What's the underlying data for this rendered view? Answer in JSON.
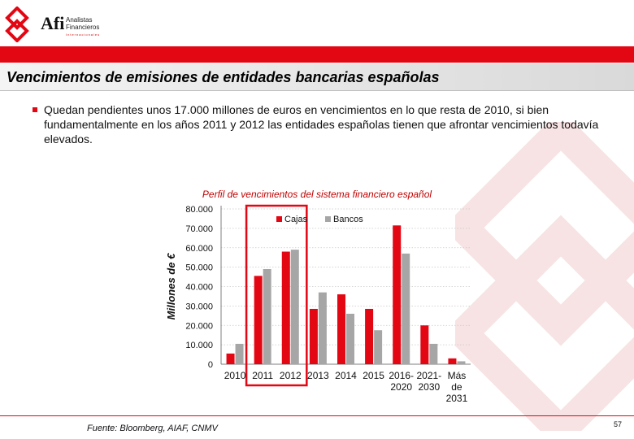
{
  "header": {
    "logo_word": "Afi",
    "logo_sub_line1": "Analistas",
    "logo_sub_line2": "Financieros",
    "logo_sub_line3": "Internacionales"
  },
  "title": "Vencimientos de emisiones  de entidades bancarias españolas",
  "bullet_text": "Quedan pendientes unos 17.000 millones de euros en vencimientos en lo que resta de 2010, si bien fundamentalmente en los años 2011 y 2012 las entidades españolas tienen que afrontar vencimientos todavía elevados.",
  "footer": {
    "source": "Fuente: Bloomberg, AIAF, CNMV",
    "page_number": "57"
  },
  "colors": {
    "cajas": "#e30613",
    "bancos": "#a6a6a6",
    "accent": "#e30613",
    "highlight": "#e30613"
  },
  "chart_data": {
    "type": "bar",
    "title": "Perfil de vencimientos del sistema financiero español",
    "ylabel": "Millones de €",
    "xlabel": "",
    "ylim": [
      0,
      80000
    ],
    "yticks": [
      0,
      10000,
      20000,
      30000,
      40000,
      50000,
      60000,
      70000,
      80000
    ],
    "ytick_labels": [
      "0",
      "10.000",
      "20.000",
      "30.000",
      "40.000",
      "50.000",
      "60.000",
      "70.000",
      "80.000"
    ],
    "categories": [
      [
        "2010"
      ],
      [
        "2011"
      ],
      [
        "2012"
      ],
      [
        "2013"
      ],
      [
        "2014"
      ],
      [
        "2015"
      ],
      [
        "2016-",
        "2020"
      ],
      [
        "2021-",
        "2030"
      ],
      [
        "Más",
        "de",
        "2031"
      ]
    ],
    "series": [
      {
        "name": "Cajas",
        "color": "#e30613",
        "values": [
          5500,
          45500,
          58000,
          28500,
          36000,
          28500,
          71500,
          20000,
          3000
        ]
      },
      {
        "name": "Bancos",
        "color": "#a6a6a6",
        "values": [
          10500,
          49000,
          59000,
          37000,
          26000,
          17500,
          57000,
          10500,
          1500
        ]
      }
    ],
    "highlight_categories": [
      "2011",
      "2012"
    ],
    "legend": "top"
  }
}
